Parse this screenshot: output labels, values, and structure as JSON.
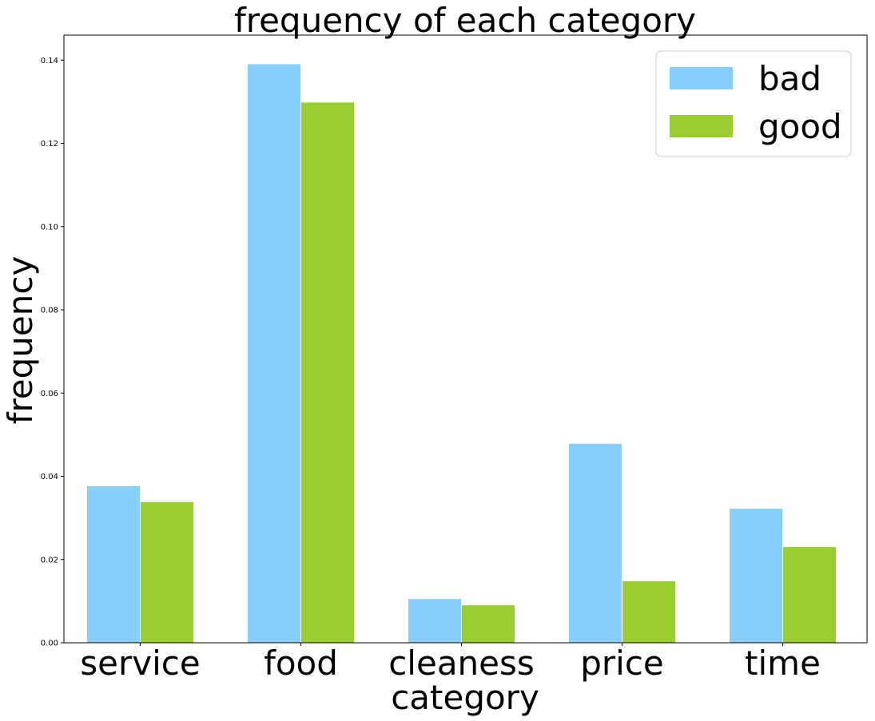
{
  "chart_data": {
    "type": "bar",
    "title": "frequency of each category",
    "xlabel": "category",
    "ylabel": "frequency",
    "categories": [
      "service",
      "food",
      "cleaness",
      "price",
      "time"
    ],
    "series": [
      {
        "name": "bad",
        "color": "#87CEFA",
        "values": [
          0.0377,
          0.1391,
          0.0106,
          0.0479,
          0.0323
        ]
      },
      {
        "name": "good",
        "color": "#9ACD32",
        "values": [
          0.0339,
          0.1299,
          0.0091,
          0.0149,
          0.0231
        ]
      }
    ],
    "ylim": [
      0,
      0.146
    ],
    "yticks": [
      0.0,
      0.02,
      0.04,
      0.06,
      0.08,
      0.1,
      0.12,
      0.14
    ],
    "ytick_labels": [
      "0.00",
      "0.02",
      "0.04",
      "0.06",
      "0.08",
      "0.10",
      "0.12",
      "0.14"
    ],
    "grid": false,
    "legend_position": "top-right"
  }
}
